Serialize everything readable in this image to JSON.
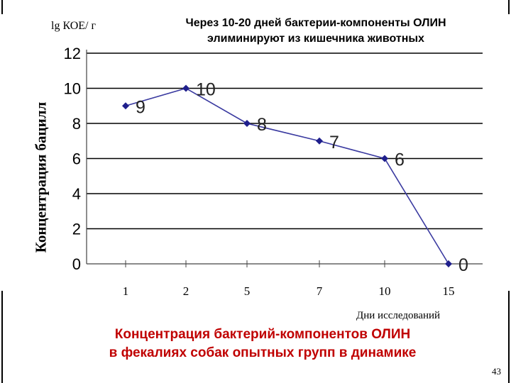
{
  "slide": {
    "top_note_line1": "Через 10-20 дней бактерии-компоненты ОЛИН",
    "top_note_line2": "элиминируют из кишечника животных",
    "caption_line1": "Концентрация бактерий-компонентов ОЛИН",
    "caption_line2": "в фекалиях собак опытных групп в динамике",
    "page_number": "43"
  },
  "chart_data": {
    "type": "line",
    "title": "",
    "unit_label": "lg КОЕ/ г",
    "ylabel": "Концентрация бацилл",
    "xlabel": "Дни исследований",
    "categories": [
      "1",
      "2",
      "5",
      "7",
      "10",
      "15"
    ],
    "series": [
      {
        "values": [
          9,
          10,
          8,
          7,
          6,
          0
        ]
      }
    ],
    "data_labels": [
      "9",
      "10",
      "8",
      "7",
      "6",
      "0"
    ],
    "ylim": [
      0,
      12
    ],
    "yticks": [
      "0",
      "2",
      "4",
      "6",
      "8",
      "10",
      "12"
    ],
    "grid": true,
    "colors": {
      "line": "#3a3aa0",
      "marker": "#1f1f8c",
      "grid": "#000000"
    }
  }
}
